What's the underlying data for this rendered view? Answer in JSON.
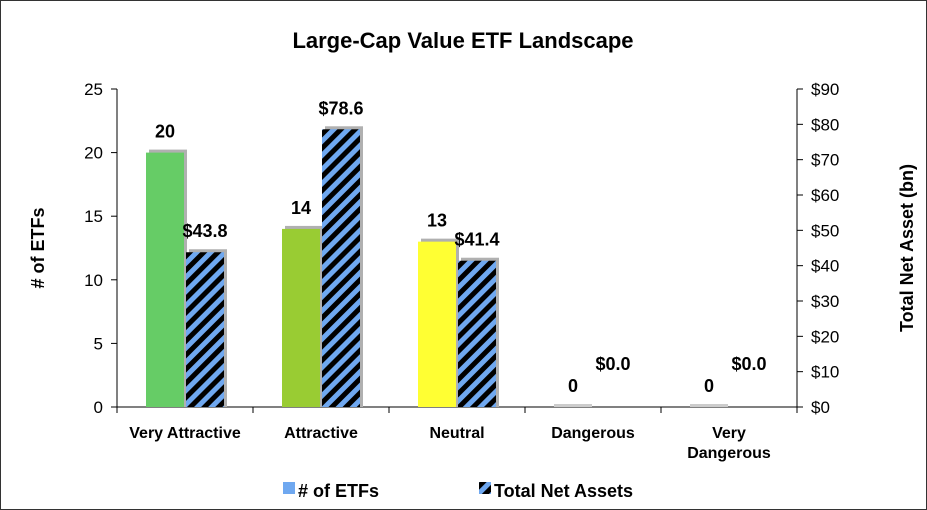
{
  "chart_data": {
    "type": "bar",
    "title": "Large-Cap Value ETF Landscape",
    "categories": [
      [
        "Very Attractive"
      ],
      [
        "Attractive"
      ],
      [
        "Neutral"
      ],
      [
        "Dangerous"
      ],
      [
        "Very",
        "Dangerous"
      ]
    ],
    "ylabel_left": "# of ETFs",
    "ylabel_right": "Total Net Asset (bn)",
    "ylim_left": [
      0,
      25
    ],
    "ylim_right": [
      0,
      90
    ],
    "yticks_left": [
      "0",
      "5",
      "10",
      "15",
      "20",
      "25"
    ],
    "yticks_right": [
      "$0",
      "$10",
      "$20",
      "$30",
      "$40",
      "$50",
      "$60",
      "$70",
      "$80",
      "$90"
    ],
    "series": [
      {
        "name": "# of ETFs",
        "axis": "left",
        "values": [
          20,
          14,
          13,
          0,
          0
        ],
        "labels": [
          "20",
          "14",
          "13",
          "0",
          "0"
        ],
        "colors": [
          "#66cc66",
          "#99cc33",
          "#ffff33",
          "#cccccc",
          "#cccccc"
        ]
      },
      {
        "name": "Total Net Assets",
        "axis": "right",
        "values": [
          43.8,
          78.6,
          41.4,
          0.0,
          0.0
        ],
        "labels": [
          "$43.8",
          "$78.6",
          "$41.4",
          "$0.0",
          "$0.0"
        ],
        "pattern_colors": [
          "#6fa8f0",
          "#000000"
        ]
      }
    ],
    "legend_position": "bottom",
    "grid": false
  }
}
